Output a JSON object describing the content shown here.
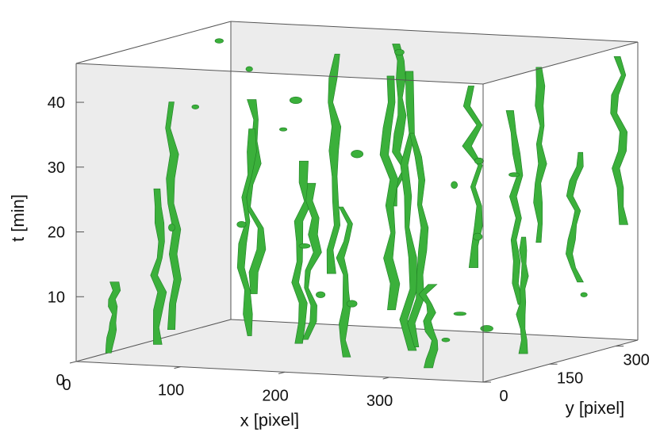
{
  "chart_data": {
    "type": "3d-isosurface",
    "title": "",
    "surface_color": "#3bb03b",
    "background_color": "#ececec",
    "grid": false,
    "x_axis": {
      "label": "x [pixel]",
      "ticks": [
        0,
        100,
        200,
        300
      ],
      "tick_labels": [
        "0",
        "100",
        "200",
        "300"
      ],
      "range": [
        0,
        390
      ]
    },
    "y_axis": {
      "label": "y [pixel]",
      "ticks": [
        0,
        150,
        300
      ],
      "tick_labels": [
        "0",
        "150",
        "300"
      ],
      "range": [
        0,
        350
      ]
    },
    "z_axis": {
      "label": "t [min]",
      "ticks": [
        10,
        20,
        30,
        40
      ],
      "tick_labels": [
        "10",
        "20",
        "30",
        "40"
      ],
      "range": [
        0,
        46
      ]
    },
    "strands": [
      {
        "x": 25,
        "y": 20,
        "t0": 1,
        "t1": 12
      },
      {
        "x": 55,
        "y": 60,
        "t0": 2,
        "t1": 26
      },
      {
        "x": 80,
        "y": 30,
        "t0": 5,
        "t1": 40
      },
      {
        "x": 95,
        "y": 180,
        "t0": 8,
        "t1": 38
      },
      {
        "x": 120,
        "y": 100,
        "t0": 3,
        "t1": 35
      },
      {
        "x": 140,
        "y": 250,
        "t0": 10,
        "t1": 44
      },
      {
        "x": 165,
        "y": 120,
        "t0": 2,
        "t1": 30
      },
      {
        "x": 185,
        "y": 300,
        "t0": 20,
        "t1": 45
      },
      {
        "x": 200,
        "y": 60,
        "t0": 4,
        "t1": 28
      },
      {
        "x": 215,
        "y": 200,
        "t0": 6,
        "t1": 42
      },
      {
        "x": 240,
        "y": 40,
        "t0": 2,
        "t1": 25
      },
      {
        "x": 255,
        "y": 150,
        "t0": 1,
        "t1": 44
      },
      {
        "x": 270,
        "y": 260,
        "t0": 12,
        "t1": 40
      },
      {
        "x": 290,
        "y": 90,
        "t0": 3,
        "t1": 36
      },
      {
        "x": 310,
        "y": 320,
        "t0": 15,
        "t1": 42
      },
      {
        "x": 325,
        "y": 30,
        "t0": 1,
        "t1": 14
      },
      {
        "x": 340,
        "y": 190,
        "t0": 8,
        "t1": 38
      },
      {
        "x": 360,
        "y": 280,
        "t0": 10,
        "t1": 30
      },
      {
        "x": 375,
        "y": 120,
        "t0": 2,
        "t1": 20
      },
      {
        "x": 380,
        "y": 330,
        "t0": 18,
        "t1": 44
      }
    ],
    "fragments": [
      {
        "x": 10,
        "y": 300,
        "t": 44
      },
      {
        "x": 60,
        "y": 250,
        "t": 41
      },
      {
        "x": 150,
        "y": 20,
        "t": 22
      },
      {
        "x": 170,
        "y": 330,
        "t": 43
      },
      {
        "x": 230,
        "y": 10,
        "t": 12
      },
      {
        "x": 265,
        "y": 10,
        "t": 34
      },
      {
        "x": 300,
        "y": 200,
        "t": 18
      },
      {
        "x": 330,
        "y": 150,
        "t": 5
      },
      {
        "x": 365,
        "y": 50,
        "t": 33
      },
      {
        "x": 385,
        "y": 240,
        "t": 9
      },
      {
        "x": 45,
        "y": 110,
        "t": 19
      },
      {
        "x": 110,
        "y": 10,
        "t": 40
      },
      {
        "x": 280,
        "y": 330,
        "t": 25
      },
      {
        "x": 350,
        "y": 10,
        "t": 6
      },
      {
        "x": 130,
        "y": 210,
        "t": 15
      },
      {
        "x": 205,
        "y": 140,
        "t": 8
      },
      {
        "x": 320,
        "y": 100,
        "t": 28
      },
      {
        "x": 75,
        "y": 320,
        "t": 35
      },
      {
        "x": 245,
        "y": 290,
        "t": 4
      },
      {
        "x": 190,
        "y": 20,
        "t": 37
      }
    ]
  }
}
